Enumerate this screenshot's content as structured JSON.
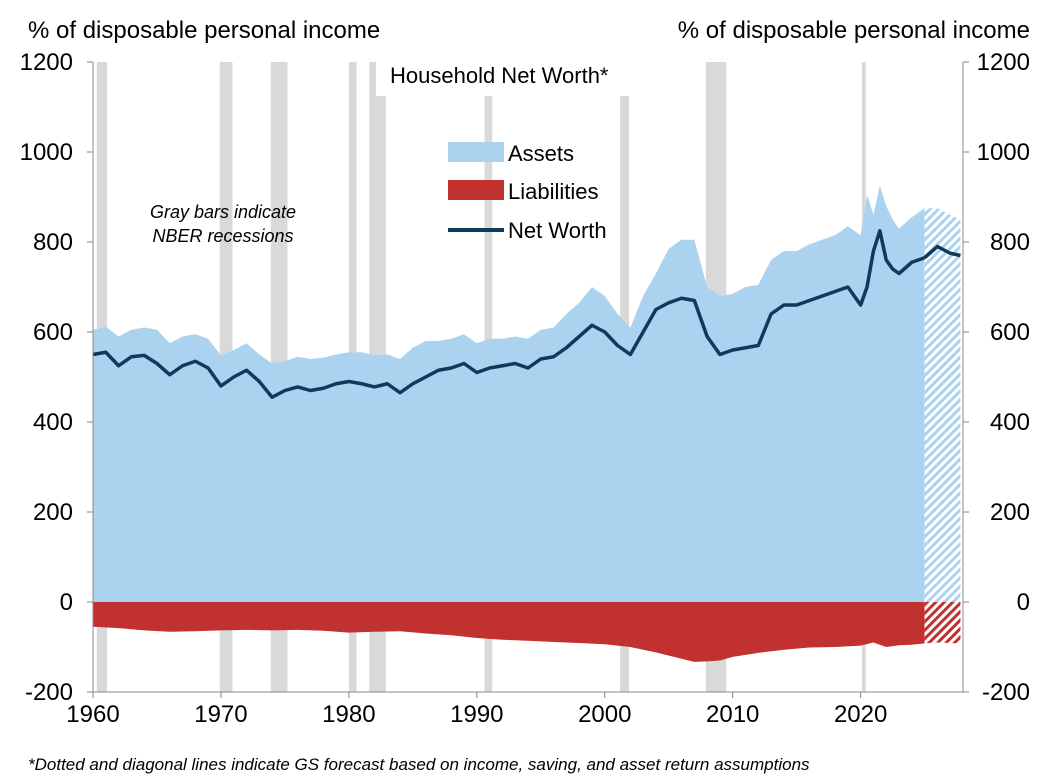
{
  "chart_data": {
    "type": "area",
    "title": "Household Net Worth*",
    "ylabel_left": "% of disposable personal income",
    "ylabel_right": "% of disposable personal income",
    "ylim": [
      -200,
      1200
    ],
    "xlim": [
      1960,
      2028
    ],
    "yticks": [
      "1200",
      "1000",
      "800",
      "600",
      "400",
      "200",
      "0",
      "-200"
    ],
    "xticks": [
      "1960",
      "1970",
      "1980",
      "1990",
      "2000",
      "2010",
      "2020"
    ],
    "ytick_values": [
      1200,
      1000,
      800,
      600,
      400,
      200,
      0,
      -200
    ],
    "xtick_values": [
      1960,
      1970,
      1980,
      1990,
      2000,
      2010,
      2020
    ],
    "grid": false,
    "legend_position": "top-center",
    "annotation": "Gray bars indicate NBER recessions",
    "footnote": "*Dotted and diagonal lines indicate GS forecast based on income, saving, and asset return assumptions",
    "forecast_start": 2025.0,
    "recessions": [
      [
        1960.3,
        1961.1
      ],
      [
        1969.9,
        1970.9
      ],
      [
        1973.9,
        1975.2
      ],
      [
        1980.0,
        1980.6
      ],
      [
        1981.6,
        1982.9
      ],
      [
        1990.6,
        1991.2
      ],
      [
        2001.2,
        2001.9
      ],
      [
        2007.9,
        2009.5
      ],
      [
        2020.1,
        2020.4
      ]
    ],
    "series": [
      {
        "name": "Assets",
        "color": "#abd3ef",
        "x": [
          1960,
          1961,
          1962,
          1963,
          1964,
          1965,
          1966,
          1967,
          1968,
          1969,
          1970,
          1971,
          1972,
          1973,
          1974,
          1975,
          1976,
          1977,
          1978,
          1979,
          1980,
          1981,
          1982,
          1983,
          1984,
          1985,
          1986,
          1987,
          1988,
          1989,
          1990,
          1991,
          1992,
          1993,
          1994,
          1995,
          1996,
          1997,
          1998,
          1999,
          2000,
          2001,
          2002,
          2003,
          2004,
          2005,
          2006,
          2007,
          2008,
          2009,
          2010,
          2011,
          2012,
          2013,
          2014,
          2015,
          2016,
          2017,
          2018,
          2019,
          2020,
          2020.5,
          2021,
          2021.5,
          2022,
          2022.5,
          2023,
          2024,
          2025,
          2026,
          2027,
          2027.8
        ],
        "values": [
          605,
          612,
          590,
          605,
          610,
          605,
          575,
          590,
          595,
          585,
          548,
          560,
          575,
          550,
          530,
          535,
          545,
          540,
          543,
          550,
          555,
          555,
          548,
          550,
          540,
          565,
          580,
          580,
          585,
          595,
          575,
          585,
          585,
          590,
          585,
          605,
          610,
          640,
          665,
          700,
          680,
          640,
          610,
          680,
          730,
          785,
          805,
          805,
          700,
          680,
          685,
          700,
          705,
          760,
          780,
          780,
          795,
          805,
          815,
          835,
          815,
          905,
          860,
          925,
          880,
          850,
          830,
          855,
          875,
          875,
          860,
          850
        ]
      },
      {
        "name": "Liabilities",
        "color": "#c0312f",
        "x": [
          1960,
          1962,
          1964,
          1966,
          1968,
          1970,
          1972,
          1974,
          1976,
          1978,
          1980,
          1982,
          1984,
          1986,
          1988,
          1990,
          1992,
          1994,
          1996,
          1998,
          2000,
          2002,
          2004,
          2006,
          2007,
          2008,
          2009,
          2010,
          2012,
          2014,
          2016,
          2018,
          2020,
          2021,
          2022,
          2023,
          2024,
          2025,
          2026,
          2027,
          2027.8
        ],
        "values": [
          -55,
          -58,
          -63,
          -66,
          -65,
          -63,
          -62,
          -63,
          -62,
          -64,
          -68,
          -66,
          -65,
          -70,
          -74,
          -80,
          -84,
          -86,
          -89,
          -91,
          -94,
          -100,
          -112,
          -126,
          -133,
          -132,
          -130,
          -122,
          -113,
          -106,
          -101,
          -100,
          -97,
          -90,
          -100,
          -96,
          -95,
          -92,
          -90,
          -91,
          -92
        ]
      },
      {
        "name": "Net Worth",
        "color": "#0e3a5c",
        "x": [
          1960,
          1961,
          1962,
          1963,
          1964,
          1965,
          1966,
          1967,
          1968,
          1969,
          1970,
          1971,
          1972,
          1973,
          1974,
          1975,
          1976,
          1977,
          1978,
          1979,
          1980,
          1981,
          1982,
          1983,
          1984,
          1985,
          1986,
          1987,
          1988,
          1989,
          1990,
          1991,
          1992,
          1993,
          1994,
          1995,
          1996,
          1997,
          1998,
          1999,
          2000,
          2001,
          2002,
          2003,
          2004,
          2005,
          2006,
          2007,
          2008,
          2009,
          2010,
          2011,
          2012,
          2013,
          2014,
          2015,
          2016,
          2017,
          2018,
          2019,
          2020,
          2020.5,
          2021,
          2021.5,
          2022,
          2022.5,
          2023,
          2024,
          2025,
          2026,
          2027,
          2027.8
        ],
        "values": [
          550,
          555,
          525,
          545,
          548,
          530,
          505,
          525,
          535,
          520,
          480,
          500,
          515,
          490,
          455,
          470,
          478,
          470,
          475,
          485,
          490,
          485,
          478,
          485,
          465,
          485,
          500,
          515,
          520,
          530,
          510,
          520,
          525,
          530,
          520,
          540,
          545,
          565,
          590,
          615,
          600,
          570,
          550,
          600,
          650,
          665,
          675,
          670,
          590,
          550,
          560,
          565,
          570,
          640,
          660,
          660,
          670,
          680,
          690,
          700,
          660,
          700,
          780,
          825,
          760,
          740,
          730,
          755,
          765,
          790,
          775,
          770
        ]
      }
    ]
  }
}
